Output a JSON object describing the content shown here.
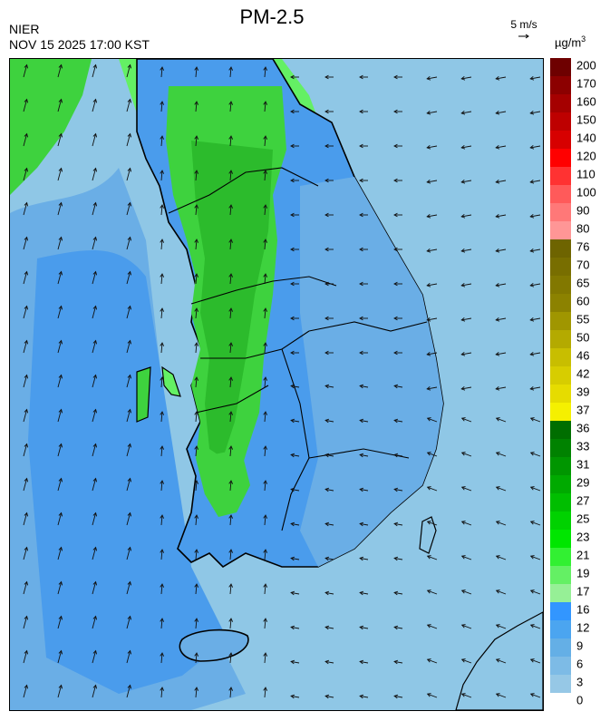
{
  "title": "PM-2.5",
  "source": "NIER",
  "timestamp": "NOV 15 2025 17:00 KST",
  "wind_scale_label": "5 m/s",
  "unit": {
    "base": "µg/m",
    "sup": "3"
  },
  "legend": {
    "labels": [
      "200",
      "170",
      "160",
      "150",
      "140",
      "120",
      "110",
      "100",
      "90",
      "80",
      "76",
      "70",
      "65",
      "60",
      "55",
      "50",
      "46",
      "42",
      "39",
      "37",
      "36",
      "33",
      "31",
      "29",
      "27",
      "25",
      "23",
      "21",
      "19",
      "17",
      "16",
      "12",
      "9",
      "6",
      "3",
      "0"
    ],
    "colors": [
      "#6e0000",
      "#8c0000",
      "#a50000",
      "#be0000",
      "#d70000",
      "#ff0000",
      "#ff3232",
      "#ff5a5a",
      "#ff7878",
      "#ff9696",
      "#6e6400",
      "#786e00",
      "#827800",
      "#8c8200",
      "#a09600",
      "#b4aa00",
      "#c8be00",
      "#d7cd00",
      "#e6dc00",
      "#f5f000",
      "#006e00",
      "#008200",
      "#009600",
      "#00aa00",
      "#00be00",
      "#00d200",
      "#00e600",
      "#32f032",
      "#64f064",
      "#96f096",
      "#3296ff",
      "#4ba5f0",
      "#64afe6",
      "#7dbbe6",
      "#96c8e6"
    ]
  },
  "colors": {
    "sea_light": "#8fc7e6",
    "blue": "#4a9cec",
    "mid_blue": "#6aaee6",
    "green": "#3ed23e",
    "light_green": "#96f096",
    "dark_green": "#1ea81e",
    "coast": "#000000",
    "arrow": "#111111"
  },
  "icons": {
    "wind": "arrow-icon"
  }
}
